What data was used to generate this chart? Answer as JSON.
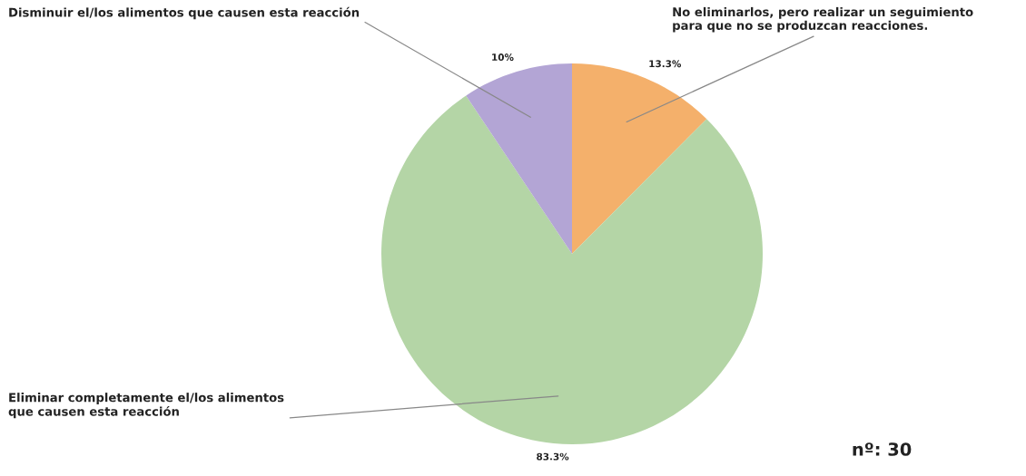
{
  "chart_data": {
    "type": "pie",
    "categories": [
      "No eliminarlos, pero realizar un seguimiento\npara que no se produzcan reacciones.",
      "Eliminar completamente el/los alimentos\nque causen esta reacción",
      "Disminuir el/los alimentos que causen esta reacción"
    ],
    "values": [
      13.3,
      83.3,
      10
    ],
    "colors": [
      "#f4b06b",
      "#b4d5a6",
      "#b3a5d5"
    ],
    "value_labels": [
      "13.3%",
      "83.3%",
      "10%"
    ],
    "annotations": [
      "nº: 30"
    ]
  }
}
